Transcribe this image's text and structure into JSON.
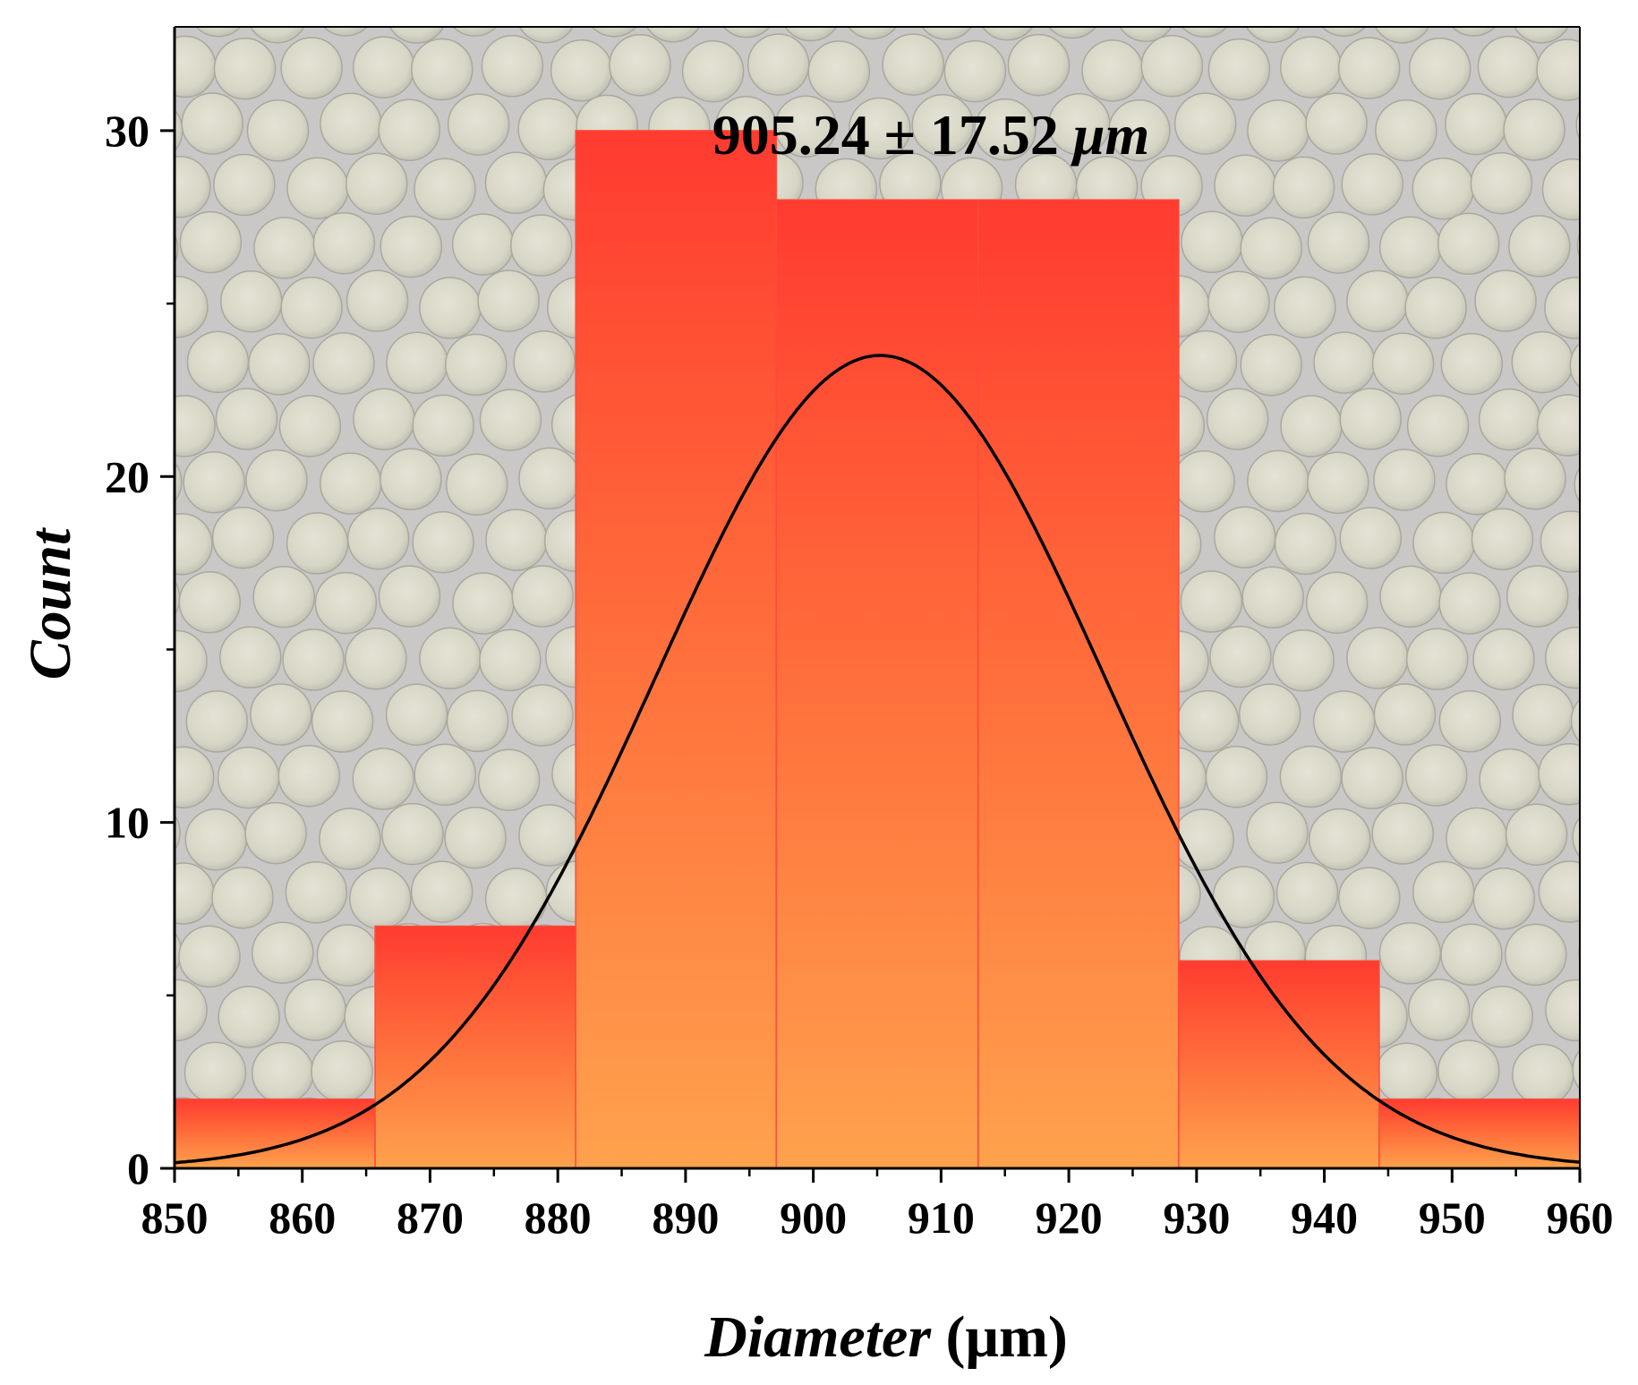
{
  "chart_data": {
    "type": "bar",
    "subtype": "histogram with normal fit",
    "annotation": "905.24 ± 17.52 ",
    "annotation_unit": "μm",
    "xlabel": "Diameter",
    "xlabel_unit": " (μm)",
    "ylabel": "Count",
    "xlim": [
      850,
      960
    ],
    "ylim": [
      0,
      33
    ],
    "xticks": [
      850,
      860,
      870,
      880,
      890,
      900,
      910,
      920,
      930,
      940,
      950,
      960
    ],
    "yticks": [
      0,
      10,
      20,
      30
    ],
    "bins": [
      {
        "start": 850.0,
        "end": 865.7,
        "count": 2
      },
      {
        "start": 865.7,
        "end": 881.4,
        "count": 7
      },
      {
        "start": 881.4,
        "end": 897.1,
        "count": 30
      },
      {
        "start": 897.1,
        "end": 912.9,
        "count": 28
      },
      {
        "start": 912.9,
        "end": 928.6,
        "count": 28
      },
      {
        "start": 928.6,
        "end": 944.3,
        "count": 6
      },
      {
        "start": 944.3,
        "end": 960.0,
        "count": 2
      }
    ],
    "fit": {
      "type": "normal",
      "mean": 905.24,
      "sd": 17.52,
      "peak": 23.5
    },
    "colors": {
      "bar_top": "#ff3b30",
      "bar_bottom": "#ffa24d",
      "fit_line": "#000000",
      "background": "#c9c8c6"
    },
    "background_image": "microspheres micrograph",
    "grid": false,
    "legend": "none"
  }
}
